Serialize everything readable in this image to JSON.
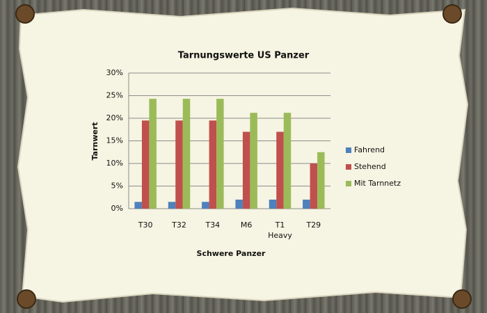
{
  "chart_data": {
    "type": "bar",
    "title": "Tarnungswerte US Panzer",
    "x_label": "Schwere Panzer",
    "y_label": "Tarnwert",
    "categories": [
      "T30",
      "T32",
      "T34",
      "M6",
      "T1 Heavy",
      "T29"
    ],
    "series": [
      {
        "name": "Fahrend",
        "color": "#4f81bd",
        "values": [
          1.5,
          1.5,
          1.5,
          2,
          2,
          2
        ]
      },
      {
        "name": "Stehend",
        "color": "#c0504d",
        "values": [
          19.5,
          19.5,
          19.5,
          17,
          17,
          10
        ]
      },
      {
        "name": "Mit Tarnnetz",
        "color": "#9bbb59",
        "values": [
          24.3,
          24.3,
          24.3,
          21.2,
          21.2,
          12.5
        ]
      }
    ],
    "ylim": [
      0,
      30
    ],
    "yticks": [
      {
        "value": 0,
        "label": "0%"
      },
      {
        "value": 5,
        "label": "5%"
      },
      {
        "value": 10,
        "label": "10%"
      },
      {
        "value": 15,
        "label": "15%"
      },
      {
        "value": 20,
        "label": "20%"
      },
      {
        "value": 25,
        "label": "25%"
      },
      {
        "value": 30,
        "label": "30%"
      }
    ],
    "grid": true,
    "legend": "right"
  }
}
